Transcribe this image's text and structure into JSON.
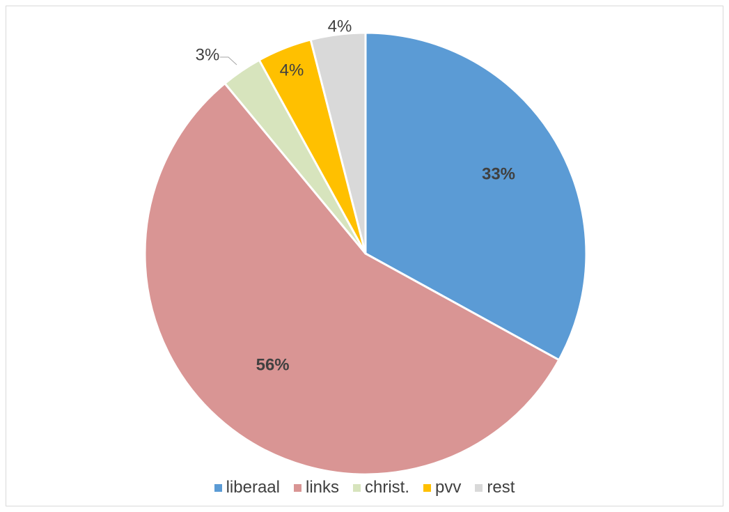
{
  "chart_data": {
    "type": "pie",
    "title": "",
    "categories": [
      "liberaal",
      "links",
      "christ.",
      "pvv",
      "rest"
    ],
    "values": [
      33,
      56,
      3,
      4,
      4
    ],
    "labels": [
      "33%",
      "56%",
      "3%",
      "4%",
      "4%"
    ],
    "colors": [
      "#5b9bd5",
      "#d99594",
      "#d7e4bd",
      "#ffc000",
      "#d9d9d9"
    ],
    "label_colors": [
      "#404040",
      "#404040",
      "#404040",
      "#404040",
      "#404040"
    ],
    "legend_position": "bottom",
    "start_angle": "12 o'clock, clockwise"
  }
}
